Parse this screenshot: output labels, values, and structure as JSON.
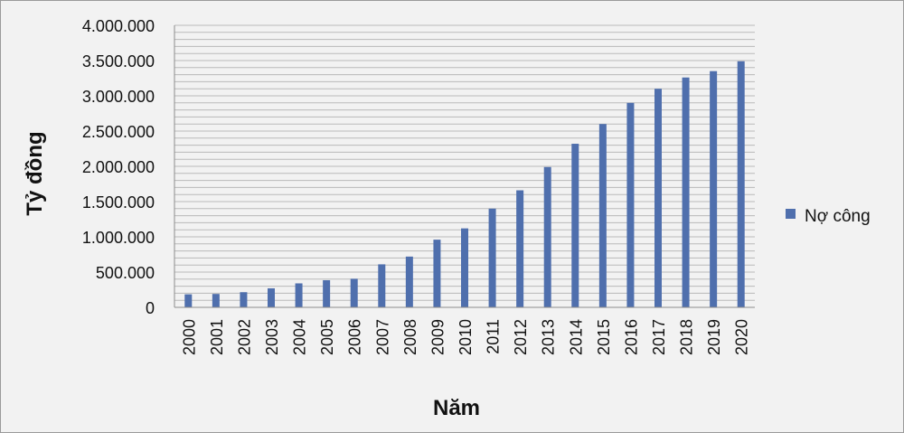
{
  "chart_data": {
    "type": "bar",
    "xlabel": "Năm",
    "ylabel": "Tỷ đồng",
    "ylim": [
      0,
      4000000
    ],
    "y_ticks": [
      0,
      500000,
      1000000,
      1500000,
      2000000,
      2500000,
      3000000,
      3500000,
      4000000
    ],
    "y_tick_labels": [
      "0",
      "500.000",
      "1.000.000",
      "1.500.000",
      "2.000.000",
      "2.500.000",
      "3.000.000",
      "3.500.000",
      "4.000.000"
    ],
    "grid": true,
    "legend_position": "right",
    "categories": [
      "2000",
      "2001",
      "2002",
      "2003",
      "2004",
      "2005",
      "2006",
      "2007",
      "2008",
      "2009",
      "2010",
      "2011",
      "2012",
      "2013",
      "2014",
      "2015",
      "2016",
      "2017",
      "2018",
      "2019",
      "2020"
    ],
    "series": [
      {
        "name": "Nợ công",
        "color": "#4f6fad",
        "values": [
          185000,
          190000,
          215000,
          270000,
          340000,
          385000,
          405000,
          610000,
          720000,
          960000,
          1120000,
          1400000,
          1660000,
          1990000,
          2320000,
          2600000,
          2900000,
          3100000,
          3260000,
          3350000,
          3490000
        ]
      }
    ]
  }
}
